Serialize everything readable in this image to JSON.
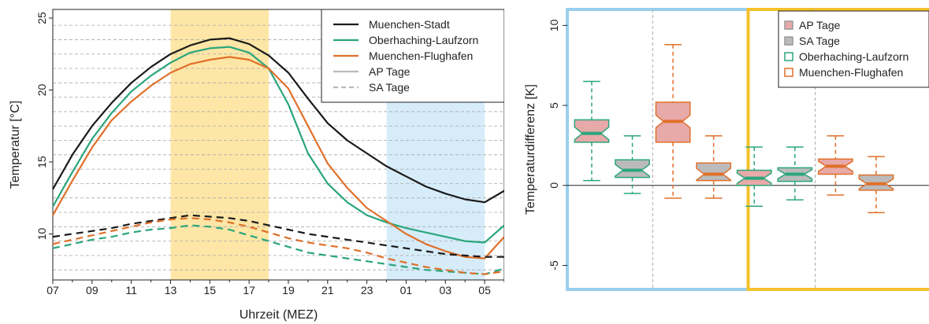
{
  "chart_data": [
    {
      "type": "line",
      "xlabel": "Uhrzeit (MEZ)",
      "ylabel": "Temperatur [°C]",
      "x_tick_labels": [
        "07",
        "09",
        "11",
        "13",
        "15",
        "17",
        "19",
        "21",
        "23",
        "01",
        "03",
        "05"
      ],
      "x_tick_hours": [
        0,
        2,
        4,
        6,
        8,
        10,
        12,
        14,
        16,
        18,
        20,
        22
      ],
      "x_unit": "hours since 07 MEZ",
      "y_ticks": [
        10,
        15,
        20,
        25
      ],
      "ylim": [
        6.8,
        25.6
      ],
      "xlim": [
        0,
        23
      ],
      "grid": "dashed horizontal lines",
      "shaded_regions": [
        {
          "from_hour": 6,
          "to_hour": 11,
          "color": "#fde6a6"
        },
        {
          "from_hour": 17,
          "to_hour": 22,
          "color": "#d6ecf9"
        }
      ],
      "colors": {
        "Muenchen-Stadt": "#1a1a1a",
        "Oberhaching-Laufzorn": "#2aa67b",
        "Muenchen-Flughafen": "#e0702a"
      },
      "legend": {
        "position": "top-right",
        "entries": [
          {
            "label": "Muenchen-Stadt",
            "color": "#1a1a1a",
            "style": "solid"
          },
          {
            "label": "Oberhaching-Laufzorn",
            "color": "#2aa67b",
            "style": "solid"
          },
          {
            "label": "Muenchen-Flughafen",
            "color": "#e0702a",
            "style": "solid"
          },
          {
            "label": "AP Tage",
            "color": "#bbbbbb",
            "style": "solid"
          },
          {
            "label": "SA Tage",
            "color": "#bbbbbb",
            "style": "dashed"
          }
        ]
      },
      "series": [
        {
          "station": "Muenchen-Stadt",
          "type": "AP Tage",
          "color": "#1a1a1a",
          "dash": false,
          "values": [
            13.1,
            15.5,
            17.5,
            19.1,
            20.5,
            21.6,
            22.5,
            23.1,
            23.5,
            23.6,
            23.2,
            22.4,
            21.2,
            19.4,
            17.7,
            16.5,
            15.6,
            14.7,
            14.0,
            13.3,
            12.8,
            12.4,
            12.2,
            13.0
          ]
        },
        {
          "station": "Oberhaching-Laufzorn",
          "type": "AP Tage",
          "color": "#2aa67b",
          "dash": false,
          "values": [
            11.9,
            14.3,
            16.6,
            18.4,
            19.9,
            21.0,
            21.9,
            22.6,
            22.9,
            23.0,
            22.6,
            21.5,
            19.0,
            15.6,
            13.5,
            12.2,
            11.3,
            10.8,
            10.4,
            10.1,
            9.8,
            9.5,
            9.4,
            10.6
          ]
        },
        {
          "station": "Muenchen-Flughafen",
          "type": "AP Tage",
          "color": "#e0702a",
          "dash": false,
          "values": [
            11.3,
            13.7,
            16.0,
            17.9,
            19.2,
            20.3,
            21.2,
            21.8,
            22.1,
            22.3,
            22.1,
            21.5,
            20.1,
            17.5,
            14.9,
            13.2,
            11.8,
            10.9,
            10.0,
            9.3,
            8.8,
            8.4,
            8.3,
            9.8
          ]
        },
        {
          "station": "Muenchen-Stadt",
          "type": "SA Tage",
          "color": "#1a1a1a",
          "dash": true,
          "values": [
            9.8,
            10.0,
            10.2,
            10.4,
            10.7,
            10.9,
            11.1,
            11.3,
            11.2,
            11.1,
            10.9,
            10.6,
            10.3,
            10.0,
            9.8,
            9.6,
            9.4,
            9.2,
            9.0,
            8.8,
            8.6,
            8.5,
            8.4,
            8.4
          ]
        },
        {
          "station": "Oberhaching-Laufzorn",
          "type": "SA Tage",
          "color": "#2aa67b",
          "dash": true,
          "values": [
            9.0,
            9.3,
            9.6,
            9.8,
            10.1,
            10.3,
            10.4,
            10.6,
            10.5,
            10.3,
            9.9,
            9.5,
            9.1,
            8.7,
            8.5,
            8.3,
            8.1,
            7.9,
            7.7,
            7.5,
            7.4,
            7.3,
            7.2,
            7.6
          ]
        },
        {
          "station": "Muenchen-Flughafen",
          "type": "SA Tage",
          "color": "#e0702a",
          "dash": true,
          "values": [
            9.3,
            9.6,
            9.9,
            10.2,
            10.5,
            10.8,
            11.0,
            11.1,
            11.0,
            10.8,
            10.5,
            10.1,
            9.7,
            9.4,
            9.2,
            9.0,
            8.7,
            8.3,
            8.0,
            7.7,
            7.5,
            7.3,
            7.2,
            7.4
          ]
        }
      ]
    },
    {
      "type": "box",
      "ylabel": "Temperaturdifferenz [K]",
      "y_ticks": [
        -5,
        0,
        5,
        10
      ],
      "ylim": [
        -6.5,
        11
      ],
      "zero_line": true,
      "groups": [
        {
          "name": "Oberhaching-Laufzorn",
          "period_frame_color": "#99cfee",
          "box_positions": [
            1,
            2
          ]
        },
        {
          "name": "Muenchen-Flughafen",
          "period_frame_color": "#99cfee",
          "box_positions": [
            3,
            4
          ]
        },
        {
          "name": "Oberhaching-Laufzorn",
          "period_frame_color": "#f5c12a",
          "box_positions": [
            5,
            6
          ]
        },
        {
          "name": "Muenchen-Flughafen",
          "period_frame_color": "#f5c12a",
          "box_positions": [
            7,
            8
          ]
        }
      ],
      "legend": {
        "position": "top-right",
        "entries": [
          {
            "label": "AP Tage",
            "marker": "filled-square",
            "color": "#e8a9a9"
          },
          {
            "label": "SA Tage",
            "marker": "filled-square",
            "color": "#bbbbbb"
          },
          {
            "label": "Oberhaching-Laufzorn",
            "marker": "open-square",
            "color": "#2aa67b"
          },
          {
            "label": "Muenchen-Flughafen",
            "marker": "open-square",
            "color": "#e0702a"
          }
        ]
      },
      "boxes": [
        {
          "type": "AP Tage",
          "station": "Oberhaching-Laufzorn",
          "fill": "#e8a9a9",
          "edge": "#2aa67b",
          "whisker_low": 0.3,
          "q1": 2.7,
          "median": 3.25,
          "q3": 4.1,
          "whisker_high": 6.5
        },
        {
          "type": "SA Tage",
          "station": "Oberhaching-Laufzorn",
          "fill": "#bbbbbb",
          "edge": "#2aa67b",
          "whisker_low": -0.5,
          "q1": 0.5,
          "median": 0.95,
          "q3": 1.6,
          "whisker_high": 3.1
        },
        {
          "type": "AP Tage",
          "station": "Muenchen-Flughafen",
          "fill": "#e8a9a9",
          "edge": "#e0702a",
          "whisker_low": -0.8,
          "q1": 2.7,
          "median": 4.0,
          "q3": 5.2,
          "whisker_high": 8.8
        },
        {
          "type": "SA Tage",
          "station": "Muenchen-Flughafen",
          "fill": "#bbbbbb",
          "edge": "#e0702a",
          "whisker_low": -0.8,
          "q1": 0.3,
          "median": 0.7,
          "q3": 1.4,
          "whisker_high": 3.1
        },
        {
          "type": "AP Tage",
          "station": "Oberhaching-Laufzorn",
          "fill": "#e8a9a9",
          "edge": "#2aa67b",
          "whisker_low": -1.3,
          "q1": 0.0,
          "median": 0.45,
          "q3": 0.95,
          "whisker_high": 2.4
        },
        {
          "type": "SA Tage",
          "station": "Oberhaching-Laufzorn",
          "fill": "#bbbbbb",
          "edge": "#2aa67b",
          "whisker_low": -0.9,
          "q1": 0.25,
          "median": 0.7,
          "q3": 1.1,
          "whisker_high": 2.4
        },
        {
          "type": "AP Tage",
          "station": "Muenchen-Flughafen",
          "fill": "#e8a9a9",
          "edge": "#e0702a",
          "whisker_low": -0.6,
          "q1": 0.7,
          "median": 1.2,
          "q3": 1.65,
          "whisker_high": 3.1
        },
        {
          "type": "SA Tage",
          "station": "Muenchen-Flughafen",
          "fill": "#bbbbbb",
          "edge": "#e0702a",
          "whisker_low": -1.7,
          "q1": -0.3,
          "median": 0.1,
          "q3": 0.65,
          "whisker_high": 1.8
        }
      ]
    }
  ]
}
